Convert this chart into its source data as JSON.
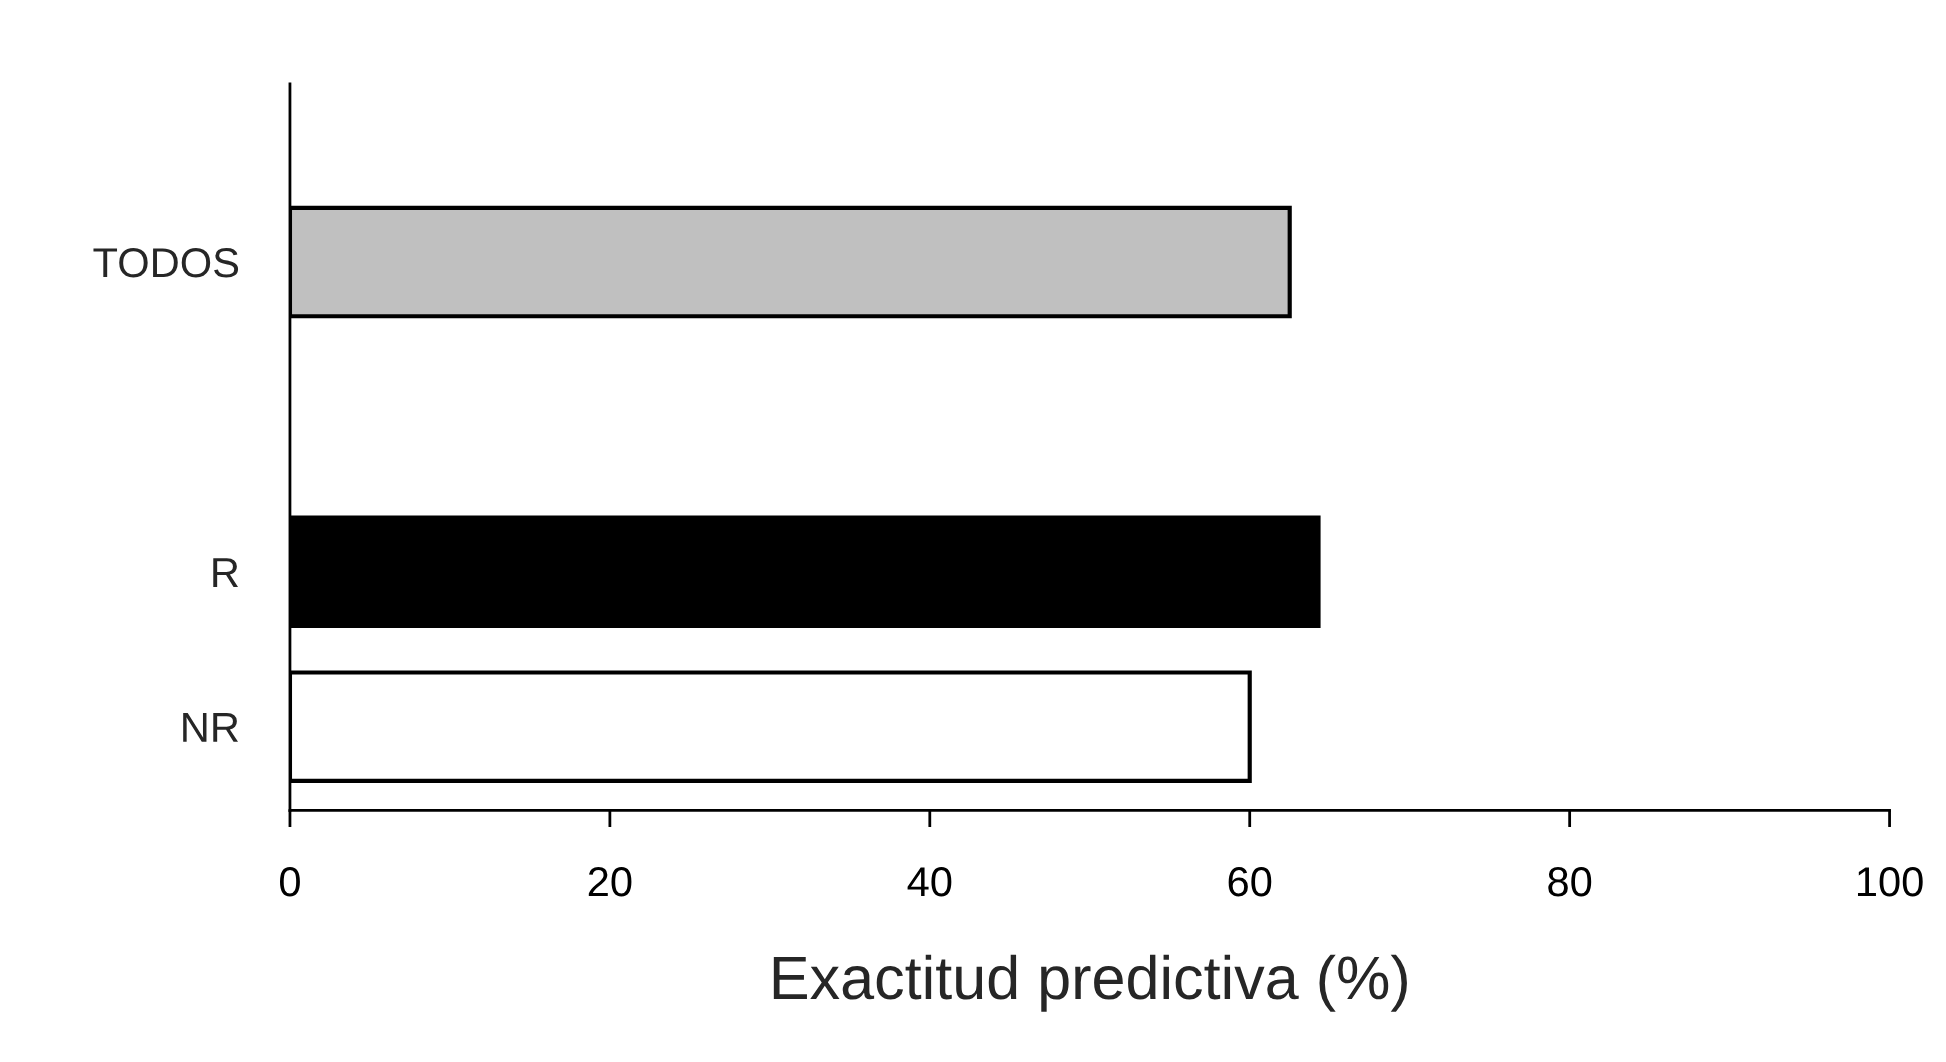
{
  "chart_data": {
    "type": "bar",
    "orientation": "horizontal",
    "xlabel": "Exactitud predictiva (%)",
    "categories": [
      "TODOS",
      null,
      "R",
      "NR"
    ],
    "values": [
      62.5,
      null,
      64.3,
      60
    ],
    "colors": [
      "#c0c0c0",
      "#ffffff",
      "#000000",
      "#ffffff"
    ],
    "xlim": [
      0,
      100
    ],
    "xticks": [
      0,
      20,
      40,
      60,
      80,
      100
    ],
    "grid": false,
    "legend": false
  }
}
